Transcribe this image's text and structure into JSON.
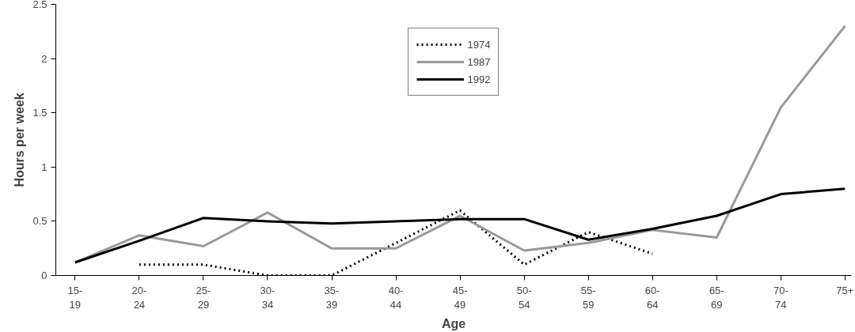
{
  "chart_data": {
    "type": "line",
    "xlabel": "Age",
    "ylabel": "Hours per week",
    "categories": [
      "15-\n19",
      "20-\n24",
      "25-\n29",
      "30-\n34",
      "35-\n39",
      "40-\n44",
      "45-\n49",
      "50-\n54",
      "55-\n59",
      "60-\n64",
      "65-\n69",
      "70-\n74",
      "75+"
    ],
    "series": [
      {
        "name": "1974",
        "color": "#000000",
        "line_style": "dotted",
        "values": [
          null,
          0.1,
          0.1,
          0.0,
          0.0,
          0.3,
          0.6,
          0.1,
          0.4,
          0.2,
          null,
          null,
          null
        ]
      },
      {
        "name": "1987",
        "color": "#999999",
        "line_style": "solid",
        "values": [
          0.12,
          0.37,
          0.27,
          0.58,
          0.25,
          0.25,
          0.55,
          0.23,
          0.3,
          0.42,
          0.35,
          1.55,
          2.3
        ]
      },
      {
        "name": "1992",
        "color": "#000000",
        "line_style": "solid",
        "values": [
          0.12,
          0.32,
          0.53,
          0.5,
          0.48,
          0.5,
          0.52,
          0.52,
          0.33,
          0.43,
          0.55,
          0.75,
          0.8
        ]
      }
    ],
    "ylim": [
      0,
      2.5
    ],
    "yticks": [
      0,
      0.5,
      1,
      1.5,
      2,
      2.5
    ],
    "grid": false,
    "legend": "top",
    "marker": "none"
  }
}
